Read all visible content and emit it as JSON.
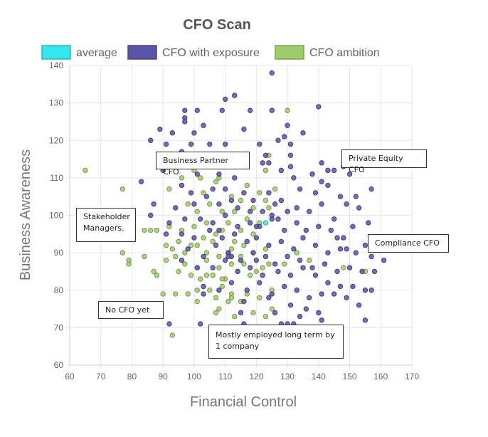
{
  "chart_data": {
    "type": "scatter",
    "title": "CFO Scan",
    "xlabel": "Financial Control",
    "ylabel": "Business Awareness",
    "xlim": [
      60,
      170
    ],
    "ylim": [
      60,
      140
    ],
    "x_ticks": [
      60,
      70,
      80,
      90,
      100,
      110,
      120,
      130,
      140,
      150,
      160,
      170
    ],
    "y_ticks": [
      60,
      70,
      80,
      90,
      100,
      110,
      120,
      130,
      140
    ],
    "grid": true,
    "legend_position": "top",
    "series": [
      {
        "name": "average",
        "color": "#33e6ee",
        "points": [
          [
            123,
            98
          ]
        ]
      },
      {
        "name": "CFO with exposure",
        "color": "#5b55a8",
        "points": [
          [
            125,
            138
          ],
          [
            113,
            132
          ],
          [
            110,
            131
          ],
          [
            97,
            128
          ],
          [
            101,
            128
          ],
          [
            140,
            129
          ],
          [
            97,
            126
          ],
          [
            109,
            128
          ],
          [
            97,
            125
          ],
          [
            125,
            128
          ],
          [
            118,
            128
          ],
          [
            130,
            124
          ],
          [
            103,
            124
          ],
          [
            89,
            123
          ],
          [
            93,
            122
          ],
          [
            100,
            122
          ],
          [
            116,
            123
          ],
          [
            129,
            121
          ],
          [
            135,
            122
          ],
          [
            121,
            119
          ],
          [
            131,
            119
          ],
          [
            99,
            119
          ],
          [
            86,
            120
          ],
          [
            91,
            119
          ],
          [
            105,
            119
          ],
          [
            110,
            119
          ],
          [
            127,
            120
          ],
          [
            96,
            117
          ],
          [
            131,
            116
          ],
          [
            123,
            116
          ],
          [
            141,
            114
          ],
          [
            92,
            114
          ],
          [
            148,
            113
          ],
          [
            143,
            112
          ],
          [
            145,
            112
          ],
          [
            131,
            113
          ],
          [
            150,
            111
          ],
          [
            102,
            113
          ],
          [
            108,
            111
          ],
          [
            90,
            112
          ],
          [
            113,
            110
          ],
          [
            122,
            114
          ],
          [
            124,
            114
          ],
          [
            128,
            112
          ],
          [
            132,
            110
          ],
          [
            138,
            111
          ],
          [
            141,
            109
          ],
          [
            83,
            109
          ],
          [
            96,
            108
          ],
          [
            99,
            106
          ],
          [
            101,
            111
          ],
          [
            106,
            107
          ],
          [
            110,
            107
          ],
          [
            112,
            104
          ],
          [
            116,
            106
          ],
          [
            119,
            104
          ],
          [
            124,
            106
          ],
          [
            128,
            104
          ],
          [
            134,
            107
          ],
          [
            139,
            106
          ],
          [
            143,
            108
          ],
          [
            147,
            105
          ],
          [
            152,
            105
          ],
          [
            157,
            107
          ],
          [
            87,
            103
          ],
          [
            94,
            102
          ],
          [
            100,
            103
          ],
          [
            104,
            105
          ],
          [
            108,
            103
          ],
          [
            114,
            102
          ],
          [
            118,
            101
          ],
          [
            122,
            101
          ],
          [
            126,
            103
          ],
          [
            130,
            101
          ],
          [
            133,
            102
          ],
          [
            137,
            101
          ],
          [
            141,
            103
          ],
          [
            145,
            99
          ],
          [
            149,
            103
          ],
          [
            153,
            102
          ],
          [
            156,
            98
          ],
          [
            86,
            100
          ],
          [
            92,
            98
          ],
          [
            97,
            99
          ],
          [
            102,
            99
          ],
          [
            106,
            98
          ],
          [
            110,
            100
          ],
          [
            114,
            97
          ],
          [
            118,
            98
          ],
          [
            121,
            97
          ],
          [
            125,
            99
          ],
          [
            129,
            96
          ],
          [
            133,
            98
          ],
          [
            136,
            96
          ],
          [
            140,
            97
          ],
          [
            144,
            96
          ],
          [
            148,
            94
          ],
          [
            151,
            97
          ],
          [
            155,
            92
          ],
          [
            91,
            95
          ],
          [
            96,
            95
          ],
          [
            100,
            94
          ],
          [
            105,
            96
          ],
          [
            109,
            94
          ],
          [
            113,
            95
          ],
          [
            117,
            93
          ],
          [
            120,
            94
          ],
          [
            124,
            92
          ],
          [
            128,
            93
          ],
          [
            132,
            91
          ],
          [
            135,
            94
          ],
          [
            139,
            92
          ],
          [
            143,
            90
          ],
          [
            147,
            91
          ],
          [
            152,
            90
          ],
          [
            157,
            89
          ],
          [
            161,
            88
          ],
          [
            98,
            91
          ],
          [
            103,
            89
          ],
          [
            107,
            92
          ],
          [
            111,
            90
          ],
          [
            115,
            88
          ],
          [
            119,
            90
          ],
          [
            123,
            89
          ],
          [
            126,
            87
          ],
          [
            130,
            89
          ],
          [
            134,
            88
          ],
          [
            138,
            86
          ],
          [
            142,
            87
          ],
          [
            146,
            85
          ],
          [
            150,
            86
          ],
          [
            154,
            85
          ],
          [
            158,
            85
          ],
          [
            96,
            88
          ],
          [
            101,
            86
          ],
          [
            106,
            86
          ],
          [
            110,
            88
          ],
          [
            114,
            85
          ],
          [
            118,
            86
          ],
          [
            122,
            84
          ],
          [
            127,
            85
          ],
          [
            131,
            84
          ],
          [
            135,
            86
          ],
          [
            139,
            84
          ],
          [
            143,
            82
          ],
          [
            147,
            81
          ],
          [
            151,
            81
          ],
          [
            155,
            80
          ],
          [
            157,
            80
          ],
          [
            103,
            81
          ],
          [
            108,
            80
          ],
          [
            112,
            82
          ],
          [
            117,
            80
          ],
          [
            121,
            82
          ],
          [
            125,
            79
          ],
          [
            129,
            81
          ],
          [
            133,
            80
          ],
          [
            137,
            78
          ],
          [
            141,
            79
          ],
          [
            145,
            79
          ],
          [
            149,
            78
          ],
          [
            103,
            79
          ],
          [
            116,
            77
          ],
          [
            124,
            78
          ],
          [
            131,
            76
          ],
          [
            136,
            75
          ],
          [
            140,
            74
          ],
          [
            153,
            76
          ],
          [
            115,
            74
          ],
          [
            126,
            74
          ],
          [
            134,
            73
          ],
          [
            141,
            72
          ],
          [
            155,
            72
          ],
          [
            92,
            71
          ],
          [
            102,
            71
          ],
          [
            116,
            71
          ],
          [
            128,
            71
          ],
          [
            130,
            71
          ],
          [
            132,
            71
          ],
          [
            111,
            90
          ],
          [
            112,
            89
          ],
          [
            120,
            88
          ],
          [
            125,
            100
          ],
          [
            127,
            99
          ],
          [
            111,
            89
          ],
          [
            108,
            96
          ],
          [
            120,
            97
          ],
          [
            146,
            94
          ],
          [
            149,
            91
          ]
        ]
      },
      {
        "name": "CFO ambition",
        "color": "#9dcc6b",
        "points": [
          [
            65,
            112
          ],
          [
            77,
            107
          ],
          [
            130,
            128
          ],
          [
            124,
            116
          ],
          [
            97,
            114
          ],
          [
            100,
            112
          ],
          [
            102,
            110
          ],
          [
            106,
            113
          ],
          [
            108,
            110
          ],
          [
            123,
            112
          ],
          [
            92,
            107
          ],
          [
            96,
            110
          ],
          [
            103,
            106
          ],
          [
            107,
            109
          ],
          [
            112,
            105
          ],
          [
            117,
            108
          ],
          [
            121,
            106
          ],
          [
            126,
            107
          ],
          [
            98,
            103
          ],
          [
            101,
            101
          ],
          [
            105,
            103
          ],
          [
            109,
            101
          ],
          [
            113,
            101
          ],
          [
            115,
            104
          ],
          [
            119,
            102
          ],
          [
            123,
            104
          ],
          [
            124,
            102
          ],
          [
            84,
            96
          ],
          [
            86,
            96
          ],
          [
            88,
            96
          ],
          [
            92,
            97
          ],
          [
            96,
            96
          ],
          [
            100,
            97
          ],
          [
            104,
            98
          ],
          [
            107,
            95
          ],
          [
            111,
            98
          ],
          [
            115,
            96
          ],
          [
            117,
            99
          ],
          [
            121,
            98
          ],
          [
            95,
            93
          ],
          [
            99,
            92
          ],
          [
            103,
            94
          ],
          [
            106,
            93
          ],
          [
            109,
            96
          ],
          [
            113,
            93
          ],
          [
            116,
            92
          ],
          [
            119,
            95
          ],
          [
            77,
            90
          ],
          [
            79,
            88
          ],
          [
            84,
            89
          ],
          [
            91,
            92
          ],
          [
            93,
            91
          ],
          [
            97,
            90
          ],
          [
            101,
            92
          ],
          [
            104,
            90
          ],
          [
            108,
            89
          ],
          [
            112,
            91
          ],
          [
            115,
            89
          ],
          [
            119,
            90
          ],
          [
            123,
            91
          ],
          [
            79,
            87
          ],
          [
            91,
            88
          ],
          [
            94,
            89
          ],
          [
            97,
            87
          ],
          [
            101,
            86
          ],
          [
            104,
            88
          ],
          [
            108,
            86
          ],
          [
            112,
            87
          ],
          [
            116,
            87
          ],
          [
            120,
            85
          ],
          [
            124,
            87
          ],
          [
            87,
            85
          ],
          [
            88,
            84
          ],
          [
            95,
            85
          ],
          [
            99,
            84
          ],
          [
            102,
            83
          ],
          [
            106,
            84
          ],
          [
            110,
            83
          ],
          [
            114,
            85
          ],
          [
            118,
            84
          ],
          [
            122,
            86
          ],
          [
            90,
            79
          ],
          [
            94,
            79
          ],
          [
            98,
            79
          ],
          [
            101,
            80
          ],
          [
            105,
            80
          ],
          [
            109,
            81
          ],
          [
            112,
            79
          ],
          [
            117,
            79
          ],
          [
            121,
            78
          ],
          [
            125,
            80
          ],
          [
            101,
            77
          ],
          [
            107,
            78
          ],
          [
            111,
            77
          ],
          [
            115,
            77
          ],
          [
            108,
            75
          ],
          [
            113,
            73
          ],
          [
            119,
            74
          ],
          [
            123,
            73
          ],
          [
            107,
            74
          ],
          [
            93,
            68
          ],
          [
            125,
            75
          ],
          [
            155,
            85
          ],
          [
            148,
            86
          ],
          [
            133,
            90
          ],
          [
            137,
            88
          ],
          [
            129,
            87
          ],
          [
            109,
            83
          ],
          [
            112,
            78
          ],
          [
            104,
            84
          ]
        ]
      }
    ],
    "annotations": [
      {
        "text": "Business Partner CFO"
      },
      {
        "text": "Private Equity CFO"
      },
      {
        "text": "Stakeholder Managers."
      },
      {
        "text": "Compliance CFO"
      },
      {
        "text": "No CFO yet"
      },
      {
        "text": "Mostly employed long term by 1 company"
      }
    ]
  }
}
